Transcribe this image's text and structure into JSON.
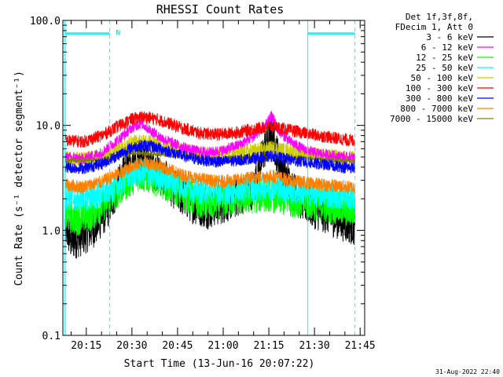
{
  "chart_data": {
    "type": "line",
    "title": "RHESSI Count Rates",
    "xlabel": "Start Time (13-Jun-16 20:07:22)",
    "ylabel": "Count Rate (s⁻¹ detector segment⁻¹)",
    "y_scale": "log",
    "ylim": [
      0.1,
      100
    ],
    "xlim_minutes_after_2000": [
      7.3,
      46.5
    ],
    "x_ticks": [
      {
        "label": "20:15",
        "min": 15
      },
      {
        "label": "20:30",
        "min": 30
      },
      {
        "label": "20:45",
        "min": 45
      },
      {
        "label": "21:00",
        "min": 60
      },
      {
        "label": "21:15",
        "min": 75
      },
      {
        "label": "21:30",
        "min": 90
      },
      {
        "label": "21:45",
        "min": 105
      }
    ],
    "y_ticks": [
      {
        "label": "0.1",
        "value": 0.1
      },
      {
        "label": "1.0",
        "value": 1
      },
      {
        "label": "10.0",
        "value": 10
      },
      {
        "label": "100.0",
        "value": 100
      }
    ],
    "legend_header": [
      "Det 1f,3f,8f,",
      "FDecim 1, Att 0"
    ],
    "legend_position": "right-outside",
    "series": [
      {
        "name": "3 - 6 keV",
        "color": "#000000",
        "x": [
          8,
          10,
          14,
          18,
          22,
          26,
          30,
          33,
          36,
          40,
          45,
          50,
          55,
          60,
          65,
          70,
          74,
          76,
          78,
          82,
          86,
          90,
          95,
          100,
          104,
          106
        ],
        "y": [
          1.1,
          0.8,
          0.9,
          1.1,
          1.6,
          2.8,
          4.5,
          5.0,
          4.2,
          3.2,
          2.3,
          1.8,
          1.6,
          1.8,
          2.1,
          2.5,
          6.5,
          8.0,
          5.0,
          2.6,
          1.9,
          1.6,
          1.4,
          1.2,
          1.1,
          1.0
        ]
      },
      {
        "name": "6 - 12 keV",
        "color": "#ff00ff",
        "x": [
          8,
          14,
          20,
          26,
          30,
          33,
          36,
          40,
          45,
          50,
          55,
          60,
          65,
          70,
          74,
          76,
          78,
          82,
          86,
          90,
          95,
          100,
          106
        ],
        "y": [
          5.0,
          4.8,
          5.5,
          7.5,
          9.5,
          10.5,
          9.0,
          7.5,
          6.5,
          5.8,
          5.5,
          5.8,
          6.5,
          7.8,
          10.0,
          12.5,
          9.0,
          7.0,
          6.0,
          5.5,
          5.2,
          5.0,
          4.8
        ]
      },
      {
        "name": "12 - 25 keV",
        "color": "#00ff00",
        "x": [
          8,
          12,
          16,
          20,
          24,
          28,
          32,
          35,
          40,
          45,
          50,
          55,
          60,
          65,
          70,
          75,
          80,
          85,
          90,
          95,
          100,
          106
        ],
        "y": [
          1.4,
          1.3,
          1.4,
          1.7,
          2.2,
          2.8,
          3.4,
          3.3,
          2.9,
          2.4,
          2.0,
          1.8,
          1.9,
          2.0,
          2.1,
          2.2,
          2.0,
          1.9,
          1.8,
          1.7,
          1.6,
          1.5
        ]
      },
      {
        "name": "25 - 50 keV",
        "color": "#00ffff",
        "x": [
          8,
          14,
          20,
          26,
          30,
          34,
          40,
          46,
          52,
          58,
          64,
          70,
          76,
          82,
          88,
          94,
          100,
          106
        ],
        "y": [
          2.1,
          2.0,
          2.2,
          2.8,
          3.5,
          3.6,
          3.2,
          2.7,
          2.4,
          2.3,
          2.4,
          2.5,
          2.6,
          2.4,
          2.3,
          2.2,
          2.1,
          2.0
        ]
      },
      {
        "name": "50 - 100 keV",
        "color": "#cccc00",
        "x": [
          8,
          14,
          20,
          26,
          30,
          34,
          40,
          46,
          52,
          58,
          64,
          70,
          76,
          82,
          88,
          94,
          100,
          106
        ],
        "y": [
          4.8,
          4.7,
          5.0,
          6.0,
          6.8,
          7.0,
          6.5,
          5.8,
          5.3,
          5.2,
          5.4,
          5.7,
          6.0,
          5.6,
          5.3,
          5.0,
          4.9,
          4.7
        ]
      },
      {
        "name": "100 - 300 keV",
        "color": "#ff0000",
        "x": [
          8,
          14,
          20,
          26,
          30,
          34,
          38,
          42,
          46,
          52,
          58,
          64,
          70,
          76,
          82,
          88,
          94,
          100,
          106
        ],
        "y": [
          7.2,
          7.0,
          8.0,
          10.0,
          11.5,
          12.0,
          11.5,
          10.5,
          9.5,
          8.5,
          8.2,
          8.5,
          9.2,
          9.8,
          9.0,
          8.3,
          7.8,
          7.3,
          7.0
        ]
      },
      {
        "name": "300 - 800 keV",
        "color": "#0000ff",
        "x": [
          8,
          14,
          20,
          26,
          30,
          34,
          38,
          42,
          46,
          52,
          58,
          64,
          70,
          76,
          82,
          88,
          94,
          100,
          106
        ],
        "y": [
          4.0,
          3.9,
          4.3,
          5.3,
          6.2,
          6.5,
          6.2,
          5.7,
          5.2,
          4.7,
          4.5,
          4.6,
          4.9,
          5.1,
          4.7,
          4.4,
          4.2,
          4.0,
          3.9
        ]
      },
      {
        "name": "800 - 7000 keV",
        "color": "#ff8000",
        "x": [
          8,
          14,
          20,
          26,
          30,
          34,
          38,
          42,
          46,
          52,
          58,
          64,
          70,
          76,
          82,
          88,
          94,
          100,
          106
        ],
        "y": [
          2.7,
          2.6,
          2.9,
          3.5,
          4.1,
          4.5,
          4.2,
          3.8,
          3.4,
          3.1,
          2.9,
          3.0,
          3.2,
          3.3,
          3.0,
          2.8,
          2.7,
          2.6,
          2.5
        ]
      },
      {
        "name": "7000 - 15000 keV",
        "color": "#808000",
        "x": [
          8,
          20,
          30,
          40,
          50,
          60,
          70,
          80,
          90,
          100,
          106
        ],
        "y": [
          4.6,
          4.7,
          5.5,
          5.3,
          4.9,
          4.8,
          5.0,
          5.0,
          4.8,
          4.6,
          4.5
        ]
      }
    ],
    "attenuator_markers": [
      {
        "x_min": 8,
        "style": "solid",
        "color": "#00ffff"
      },
      {
        "x_min": 22.7,
        "style": "dashed",
        "color": "#00ffff"
      },
      {
        "x_min": 87.8,
        "style": "solid",
        "color": "#00ffff"
      },
      {
        "x_min": 103.3,
        "style": "dashed",
        "color": "#00ffff"
      }
    ],
    "night_bars": [
      {
        "x_start_min": 8,
        "x_end_min": 22.7,
        "y_value": 75,
        "label": "N"
      },
      {
        "x_start_min": 87.8,
        "x_end_min": 103.3,
        "y_value": 75,
        "label": ""
      }
    ]
  },
  "footer_timestamp": "31-Aug-2022 22:40"
}
